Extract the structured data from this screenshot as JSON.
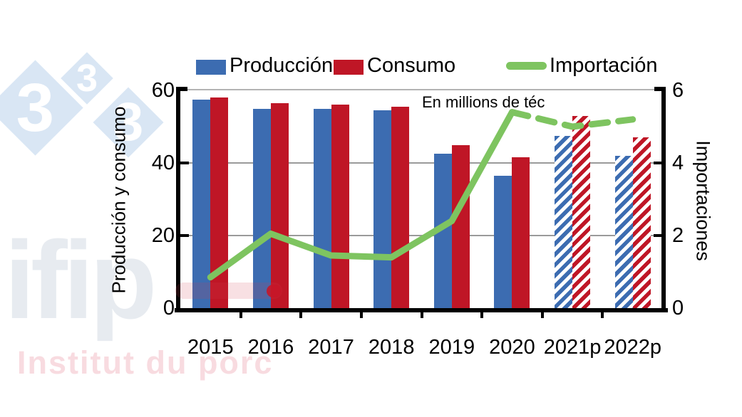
{
  "watermarks": {
    "diamond_glyph": "3",
    "ifip": "ifip",
    "institut": "Institut du porc"
  },
  "legend": {
    "produccion": "Producción",
    "consumo": "Consumo",
    "importacion": "Importación"
  },
  "colors": {
    "produccion_blue": "#3c6cb1",
    "consumo_red": "#bf1626",
    "importacion_green": "#7ec460",
    "gridline_gray": "#9a9a9a",
    "watermark_blue": "#d9e6f4",
    "watermark_pink": "#f8dbe0"
  },
  "chart_data": {
    "type": "bar+line",
    "title": "",
    "annotation": "En millions de téc",
    "categories": [
      "2015",
      "2016",
      "2017",
      "2018",
      "2019",
      "2020",
      "2021p",
      "2022p"
    ],
    "series": [
      {
        "name": "Producción",
        "type": "bar",
        "axis": "left",
        "color": "#3c6cb1",
        "values": [
          57.5,
          55,
          55,
          54.5,
          42.5,
          36.5,
          47.5,
          42
        ],
        "hatched_from_index": 6
      },
      {
        "name": "Consumo",
        "type": "bar",
        "axis": "left",
        "color": "#bf1626",
        "values": [
          58,
          56.5,
          56,
          55.5,
          45,
          41.5,
          53,
          47
        ],
        "hatched_from_index": 6
      },
      {
        "name": "Importación",
        "type": "line",
        "axis": "right",
        "color": "#7ec460",
        "values": [
          0.85,
          2.05,
          1.45,
          1.4,
          2.4,
          5.4,
          5.0,
          5.2
        ],
        "dashed_from_index": 5
      }
    ],
    "left_axis": {
      "title": "Producción y consumo",
      "ticks": [
        0,
        20,
        40,
        60
      ],
      "range": [
        0,
        60
      ]
    },
    "right_axis": {
      "title": "Importaciones",
      "ticks": [
        0,
        2,
        4,
        6
      ],
      "range": [
        0,
        6
      ]
    },
    "grid": "horizontal",
    "legend_position": "top",
    "note": "2021p and 2022p bars are hatched forecasts; line is dashed after 2020"
  }
}
